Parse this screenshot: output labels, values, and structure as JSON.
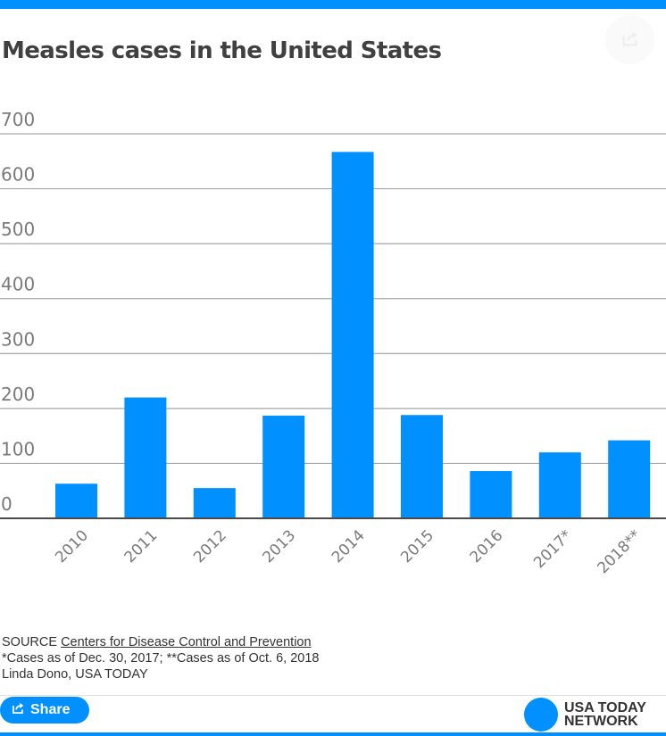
{
  "header": {
    "title": "Measles cases in the United States",
    "share_icon": "share-icon"
  },
  "colors": {
    "accent": "#0090ff",
    "bar": "#0090ff",
    "gridline": "#a6a6a6",
    "axis": "#4a4a4a",
    "tick_text": "#7a7a7a"
  },
  "chart_data": {
    "type": "bar",
    "title": "Measles cases in the United States",
    "xlabel": "",
    "ylabel": "",
    "categories": [
      "2010",
      "2011",
      "2012",
      "2013",
      "2014",
      "2015",
      "2016",
      "2017*",
      "2018**"
    ],
    "values": [
      63,
      220,
      55,
      187,
      667,
      188,
      86,
      120,
      142
    ],
    "ylim": [
      0,
      700
    ],
    "yticks": [
      0,
      100,
      200,
      300,
      400,
      500,
      600,
      700
    ],
    "ytick_labels": [
      "0",
      "100",
      "200",
      "300",
      "400",
      "500",
      "600",
      "700"
    ],
    "grid": true,
    "legend": "none",
    "xtick_rotation": "-45deg"
  },
  "footer": {
    "source_prefix": "SOURCE",
    "source_link": "Centers for Disease Control and Prevention",
    "note": "*Cases as of Dec. 30, 2017; **Cases as of Oct. 6, 2018",
    "credit": "Linda Dono, USA TODAY",
    "share_label": "Share",
    "share_icon": "share-icon",
    "brand_line1": "USA TODAY",
    "brand_line2": "NETWORK"
  }
}
